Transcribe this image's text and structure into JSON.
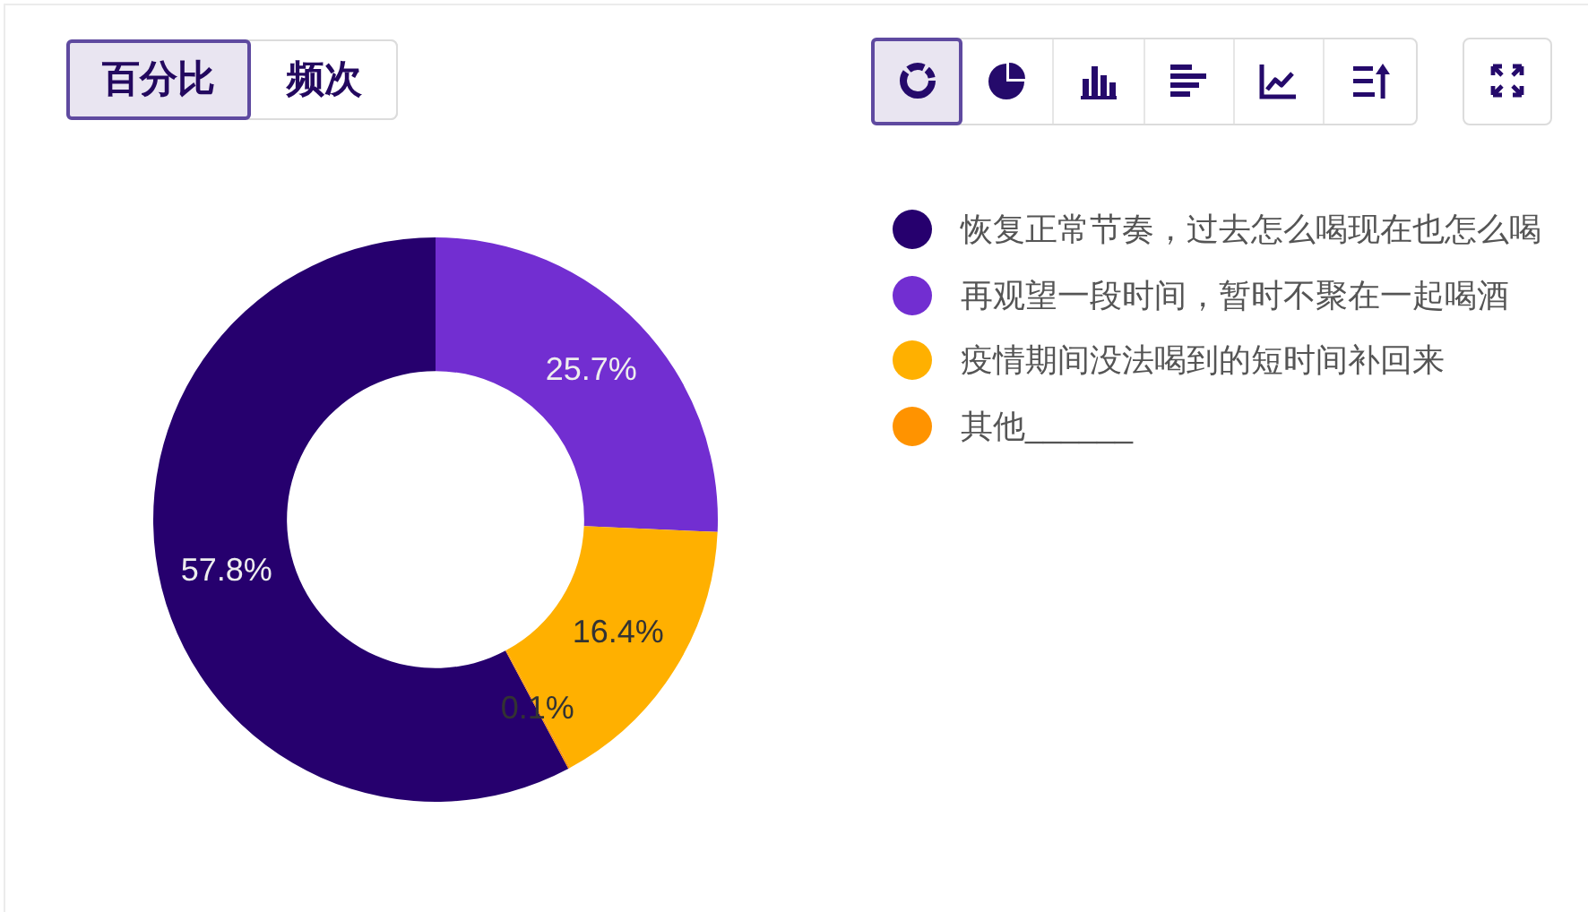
{
  "chart_data": {
    "type": "donut",
    "categories": [
      "恢复正常节奏，过去怎么喝现在也怎么喝",
      "再观望一段时间，暂时不聚在一起喝酒",
      "疫情期间没法喝到的短时间补回来",
      "其他______"
    ],
    "values": [
      57.8,
      25.7,
      16.4,
      0.1
    ],
    "colors": [
      "#26006e",
      "#722ed1",
      "#ffb000",
      "#ff9300"
    ],
    "value_labels": [
      "57.8%",
      "25.7%",
      "16.4%",
      "0.1%"
    ],
    "legend": "right",
    "annotations": [
      "百分比",
      "频次"
    ]
  }
}
